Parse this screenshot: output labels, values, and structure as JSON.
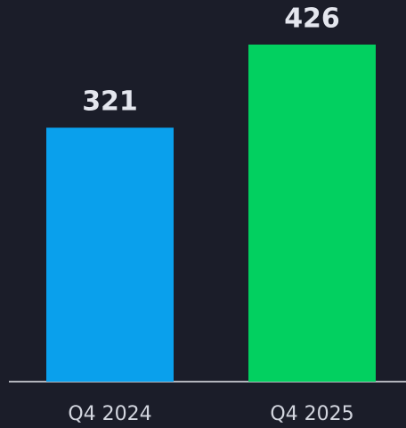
{
  "chart_data": {
    "type": "bar",
    "categories": [
      "Q4 2024",
      "Q4 2025"
    ],
    "values": [
      321,
      426
    ],
    "colors": [
      "#0aa0ec",
      "#02d060"
    ]
  }
}
